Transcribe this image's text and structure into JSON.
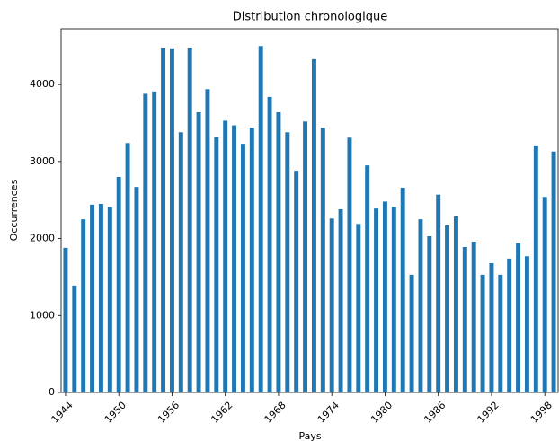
{
  "chart_data": {
    "type": "bar",
    "title": "Distribution chronologique",
    "x_label": "Pays",
    "y_label": "Occurrences",
    "categories": [
      "1944",
      null,
      null,
      null,
      null,
      null,
      "1950",
      null,
      null,
      null,
      null,
      null,
      "1956",
      null,
      null,
      null,
      null,
      null,
      "1962",
      null,
      null,
      null,
      null,
      null,
      "1968",
      null,
      null,
      null,
      null,
      null,
      "1974",
      null,
      null,
      null,
      null,
      null,
      "1980",
      null,
      null,
      null,
      null,
      null,
      "1986",
      null,
      null,
      null,
      null,
      null,
      "1992",
      null,
      null,
      null,
      null,
      null,
      "1998",
      null
    ],
    "values": [
      1880,
      1390,
      2250,
      2440,
      2450,
      2410,
      2800,
      3240,
      2670,
      3880,
      3910,
      4480,
      4470,
      3380,
      4480,
      3640,
      3940,
      3320,
      3530,
      3470,
      3230,
      3440,
      4500,
      3840,
      3640,
      3380,
      2880,
      3520,
      4330,
      3440,
      2260,
      2380,
      3310,
      2190,
      2950,
      2390,
      2480,
      2410,
      2660,
      1530,
      2250,
      2030,
      2570,
      2170,
      2290,
      1890,
      1960,
      1530,
      1680,
      1530,
      1740,
      1940,
      1770,
      3210,
      2540,
      3130
    ],
    "color": "#1f77b4",
    "ylim": [
      0,
      4725
    ],
    "yticks": [
      0,
      1000,
      2000,
      3000,
      4000
    ],
    "grid": false
  }
}
